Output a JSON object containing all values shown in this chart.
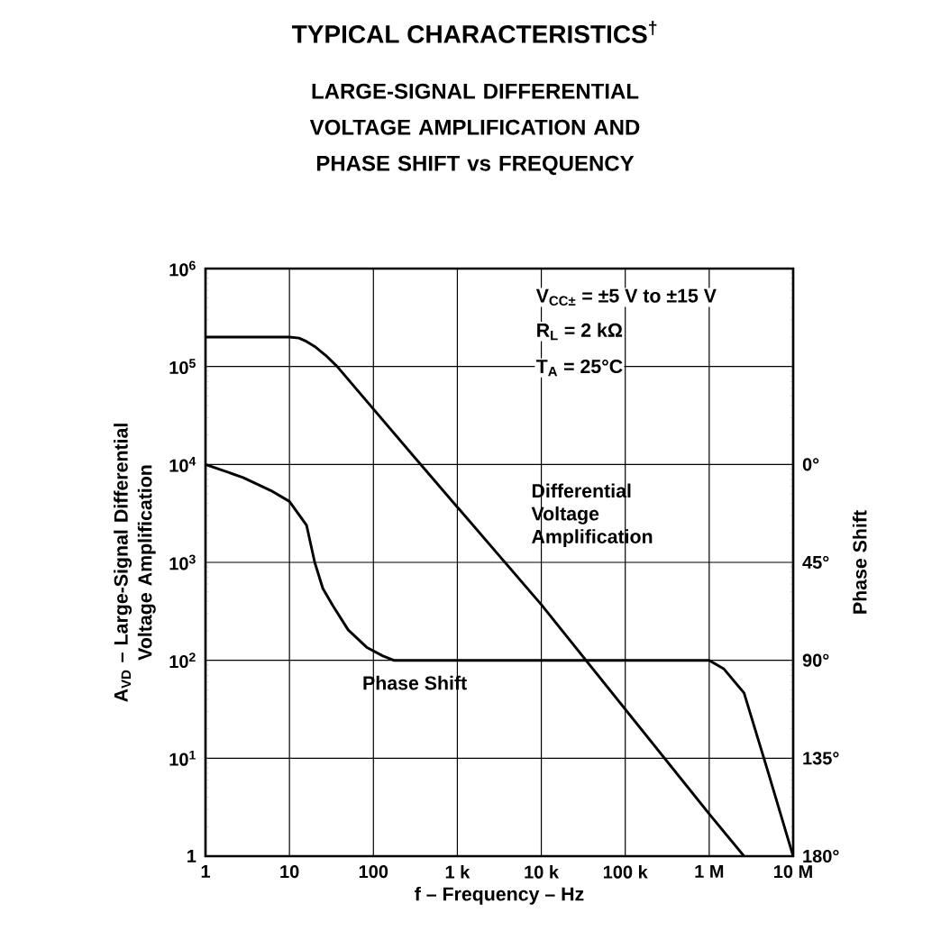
{
  "chart_data": {
    "type": "line",
    "title": "TYPICAL CHARACTERISTICS$^{†}$",
    "subtitle": "LARGE-SIGNAL DIFFERENTIAL VOLTAGE AMPLIFICATION AND PHASE SHIFT vs FREQUENCY",
    "xlabel": "f – Frequency – Hz",
    "ylabel": "A$_{VD}$ – Large-Signal Differential Voltage Amplification",
    "y2label": "Phase Shift",
    "annotations": [
      "V$_{CC±}$ = ±5 V to ±15 V",
      "R$_{L}$ = 2 kΩ",
      "T$_{A}$ = 25°C"
    ],
    "log": "xy",
    "grid": true,
    "marker": "none",
    "xlim": [
      1,
      10000000
    ],
    "ylim": [
      1,
      1000000
    ],
    "y2lim": [
      180,
      -90
    ],
    "xticks": [
      1,
      10,
      100,
      {
        "value": 1000,
        "label": "1 k"
      },
      {
        "value": 10000,
        "label": "10 k"
      },
      {
        "value": 100000,
        "label": "100 k"
      },
      {
        "value": 1000000,
        "label": "1 M"
      },
      {
        "value": 10000000,
        "label": "10 M"
      }
    ],
    "yticks": [
      1,
      {
        "value": 10,
        "label": "10$^{1}$"
      },
      {
        "value": 100,
        "label": "10$^{2}$"
      },
      {
        "value": 1000,
        "label": "10$^{3}$"
      },
      {
        "value": 10000,
        "label": "10$^{4}$"
      },
      {
        "value": 100000,
        "label": "10$^{5}$"
      },
      {
        "value": 1000000,
        "label": "10$^{6}$"
      }
    ],
    "y2ticks": [
      {
        "value": 0,
        "label": "0°"
      },
      {
        "value": 45,
        "label": "45°"
      },
      {
        "value": 90,
        "label": "90°"
      },
      {
        "value": 135,
        "label": "135°"
      },
      {
        "value": 180,
        "label": "180°"
      }
    ],
    "series": [
      {
        "name": "Differential Voltage Amplification",
        "color": "#000000",
        "x": [
          1,
          10,
          13,
          16,
          20,
          27,
          37,
          365,
          10000,
          1000000,
          2600000
        ],
        "values": [
          200000,
          200000,
          195000,
          180000,
          160000,
          130000,
          100000,
          10000,
          370,
          2.7,
          1
        ]
      },
      {
        "name": "Phase Shift",
        "color": "#000000",
        "axis": "y2",
        "x": [
          1,
          2.8,
          6,
          10,
          16,
          20,
          25,
          33,
          50,
          83,
          130,
          175,
          1000000,
          1500000,
          2600000,
          5000000,
          10000000
        ],
        "values": [
          0,
          6,
          12,
          17,
          28,
          45,
          57,
          65,
          76,
          84,
          88,
          90,
          90,
          94,
          105,
          141,
          180
        ]
      }
    ]
  }
}
